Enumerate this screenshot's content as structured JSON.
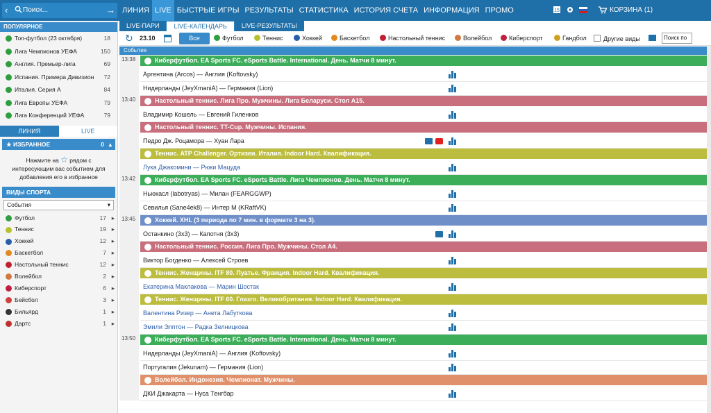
{
  "search": {
    "placeholder": "Поиск..."
  },
  "nav": [
    "ЛИНИЯ",
    "LIVE",
    "БЫСТРЫЕ ИГРЫ",
    "РЕЗУЛЬТАТЫ",
    "СТАТИСТИКА",
    "ИСТОРИЯ СЧЕТА",
    "ИНФОРМАЦИЯ",
    "ПРОМО"
  ],
  "topright": {
    "cart": "КОРЗИНА (1)"
  },
  "popular": {
    "title": "ПОПУЛЯРНОЕ",
    "items": [
      {
        "label": "Топ-футбол (23 октября)",
        "count": "18"
      },
      {
        "label": "Лига Чемпионов УЕФА",
        "count": "150"
      },
      {
        "label": "Англия. Премьер-лига",
        "count": "69"
      },
      {
        "label": "Испания. Примера Дивизион",
        "count": "72"
      },
      {
        "label": "Италия. Серия А",
        "count": "84"
      },
      {
        "label": "Лига Европы УЕФА",
        "count": "79"
      },
      {
        "label": "Лига Конференций УЕФА",
        "count": "79"
      }
    ]
  },
  "lefttabs": [
    "ЛИНИЯ",
    "LIVE"
  ],
  "fav": {
    "title": "ИЗБРАННОЕ",
    "count": "0",
    "text1": "Нажмите на",
    "text2": "рядом с",
    "text3": "интересующим вас событием для",
    "text4": "добавления его в избранное"
  },
  "sports": {
    "title": "ВИДЫ СПОРТА",
    "select": "События",
    "items": [
      {
        "label": "Футбол",
        "count": "17",
        "color": "#2e9e3e"
      },
      {
        "label": "Теннис",
        "count": "19",
        "color": "#b8c030"
      },
      {
        "label": "Хоккей",
        "count": "12",
        "color": "#2a5fa8"
      },
      {
        "label": "Баскетбол",
        "count": "7",
        "color": "#e08a20"
      },
      {
        "label": "Настольный теннис",
        "count": "12",
        "color": "#c02030"
      },
      {
        "label": "Волейбол",
        "count": "2",
        "color": "#d07a40"
      },
      {
        "label": "Киберспорт",
        "count": "6",
        "color": "#c02040"
      },
      {
        "label": "Бейсбол",
        "count": "3",
        "color": "#d04040"
      },
      {
        "label": "Бильярд",
        "count": "1",
        "color": "#333333"
      },
      {
        "label": "Дартс",
        "count": "1",
        "color": "#c03030"
      }
    ]
  },
  "maintabs": [
    "LIVE-ПАРИ",
    "LIVE-КАЛЕНДАРЬ",
    "LIVE-РЕЗУЛЬТАТЫ"
  ],
  "filter": {
    "date": "23.10",
    "all": "Все",
    "sports": [
      "Футбол",
      "Теннис",
      "Хоккей",
      "Баскетбол",
      "Настольный теннис",
      "Волейбол",
      "Киберспорт",
      "Гандбол"
    ],
    "other": "Другие виды",
    "search": "Поиск по"
  },
  "event_header": "Событие",
  "schedule": [
    {
      "type": "time",
      "t": "13:38"
    },
    {
      "type": "league",
      "text": "Киберфутбол. EA Sports FC. eSports Battle. International. День. Матчи 8 минут.",
      "color": "#3cae5a"
    },
    {
      "type": "match",
      "text": "Аргентина (Arcos) — Англия (Koftovsky)"
    },
    {
      "type": "match",
      "text": "Нидерланды (JeyXmaniA) — Германия (Lion)"
    },
    {
      "type": "time",
      "t": "13:40"
    },
    {
      "type": "league",
      "text": "Настольный теннис. Лига Про. Мужчины. Лига Беларуси. Стол A15.",
      "color": "#c86e7c"
    },
    {
      "type": "match",
      "text": "Владимир Кошель — Евгений Гиленков"
    },
    {
      "type": "league",
      "text": "Настольный теннис. TT-Cup. Мужчины. Испания.",
      "color": "#c86e7c"
    },
    {
      "type": "match",
      "text": "Педро Дж. Роцамора — Хуан Лара",
      "tv": true,
      "yt": true
    },
    {
      "type": "league",
      "text": "Теннис. ATP Challenger. Ортизеи. Италия. Indoor Hard. Квалификация.",
      "color": "#bcbd3e"
    },
    {
      "type": "match",
      "text": "Лука Джакомини — Рюки Мацуда",
      "blue": true
    },
    {
      "type": "time",
      "t": "13:42"
    },
    {
      "type": "league",
      "text": "Киберфутбол. EA Sports FC. eSports Battle. Лига Чемпионов. День. Матчи 8 минут.",
      "color": "#3cae5a"
    },
    {
      "type": "match",
      "text": "Ньюкасл (labotryas) — Милан (FEARGGWP)"
    },
    {
      "type": "match",
      "text": "Севилья (Sane4ek8) — Интер М (KRaftVK)"
    },
    {
      "type": "time",
      "t": "13:45"
    },
    {
      "type": "league",
      "text": "Хоккей. XHL (3 периода по 7 мин. в формате 3 на 3).",
      "color": "#6f8fc8"
    },
    {
      "type": "match",
      "text": "Останкино (3x3) — Капотня (3x3)",
      "tv": true
    },
    {
      "type": "league",
      "text": "Настольный теннис. Россия. Лига Про. Мужчины. Стол A4.",
      "color": "#c86e7c"
    },
    {
      "type": "match",
      "text": "Виктор Богденко — Алексей Строев"
    },
    {
      "type": "league",
      "text": "Теннис. Женщины. ITF 80. Пуатье. Франция. Indoor Hard. Квалификация.",
      "color": "#bcbd3e"
    },
    {
      "type": "match",
      "text": "Екатерина Маклакова — Марин Шостак",
      "blue": true
    },
    {
      "type": "league",
      "text": "Теннис. Женщины. ITF 60. Глазго. Великобритания. Indoor Hard. Квалификация.",
      "color": "#bcbd3e"
    },
    {
      "type": "match",
      "text": "Валентина Ризер — Анета Лабуткова",
      "blue": true
    },
    {
      "type": "match",
      "text": "Эмили Элптон — Радка Зелницкова",
      "blue": true
    },
    {
      "type": "time",
      "t": "13:50"
    },
    {
      "type": "league",
      "text": "Киберфутбол. EA Sports FC. eSports Battle. International. День. Матчи 8 минут.",
      "color": "#3cae5a"
    },
    {
      "type": "match",
      "text": "Нидерланды (JeyXmaniA) — Англия (Koftovsky)"
    },
    {
      "type": "match",
      "text": "Португалия (Jekunam) — Германия (Lion)"
    },
    {
      "type": "league",
      "text": "Волейбол. Индонезия. Чемпионат. Мужчины.",
      "color": "#e0906a"
    },
    {
      "type": "match",
      "text": "ДКИ Джакарта — Нуса Тенгбар"
    }
  ]
}
